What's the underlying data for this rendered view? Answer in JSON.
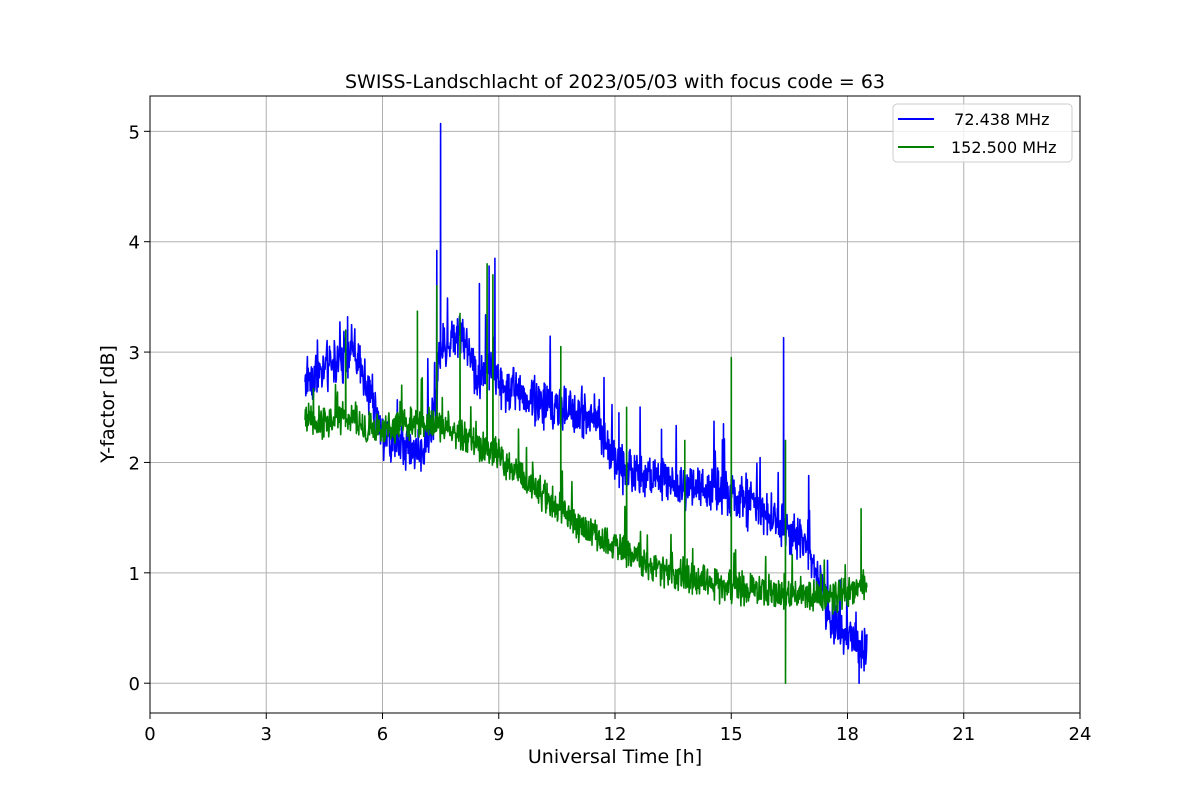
{
  "chart_data": {
    "type": "line",
    "title": "SWISS-Landschlacht of 2023/05/03 with focus code = 63",
    "xlabel": "Universal Time [h]",
    "ylabel": "Y-factor [dB]",
    "xlim": [
      0,
      24
    ],
    "ylim": [
      -0.27,
      5.32
    ],
    "xticks": [
      0,
      3,
      6,
      9,
      12,
      15,
      18,
      21,
      24
    ],
    "yticks": [
      0,
      1,
      2,
      3,
      4,
      5
    ],
    "grid": true,
    "legend_position": "top-right",
    "series": [
      {
        "name": "72.438 MHz",
        "legend_label": "  72.438 MHz",
        "color": "#0000ff",
        "x": [
          4.0,
          4.5,
          5.0,
          5.2,
          5.5,
          5.8,
          6.0,
          6.5,
          7.0,
          7.4,
          7.5,
          7.6,
          8.0,
          8.5,
          8.8,
          9.0,
          9.5,
          10.0,
          10.5,
          11.0,
          11.5,
          12.0,
          12.5,
          13.0,
          13.5,
          14.0,
          14.5,
          15.0,
          15.5,
          16.0,
          16.35,
          16.5,
          17.0,
          17.2,
          17.5,
          18.0,
          18.5
        ],
        "y": [
          2.75,
          2.85,
          2.95,
          3.05,
          2.8,
          2.45,
          2.25,
          2.15,
          2.1,
          2.55,
          3.1,
          3.05,
          3.2,
          2.75,
          2.9,
          2.7,
          2.65,
          2.55,
          2.5,
          2.45,
          2.4,
          2.0,
          1.9,
          1.85,
          1.8,
          1.8,
          1.75,
          1.7,
          1.6,
          1.5,
          1.45,
          1.35,
          1.25,
          1.0,
          0.6,
          0.45,
          0.3
        ],
        "noise": 0.16,
        "spikes": [
          [
            5.1,
            3.32
          ],
          [
            7.4,
            3.92
          ],
          [
            7.5,
            5.07
          ],
          [
            8.5,
            3.62
          ],
          [
            8.75,
            3.78
          ],
          [
            8.9,
            3.85
          ],
          [
            16.35,
            3.13
          ],
          [
            14.8,
            2.35
          ],
          [
            12.1,
            2.45
          ],
          [
            13.2,
            2.3
          ]
        ],
        "dips": [
          [
            18.3,
            0.0
          ]
        ]
      },
      {
        "name": "152.500 MHz",
        "legend_label": "152.500 MHz",
        "color": "#008000",
        "x": [
          4.0,
          4.5,
          5.0,
          5.5,
          6.0,
          6.5,
          7.0,
          7.5,
          8.0,
          8.5,
          9.0,
          9.5,
          10.0,
          10.5,
          11.0,
          11.5,
          12.0,
          12.5,
          13.0,
          13.5,
          14.0,
          14.5,
          15.0,
          15.5,
          16.0,
          16.5,
          17.0,
          17.5,
          18.0,
          18.5
        ],
        "y": [
          2.4,
          2.35,
          2.4,
          2.3,
          2.3,
          2.35,
          2.35,
          2.35,
          2.25,
          2.15,
          2.05,
          1.9,
          1.75,
          1.6,
          1.45,
          1.35,
          1.25,
          1.15,
          1.05,
          1.0,
          0.95,
          0.9,
          0.87,
          0.85,
          0.82,
          0.8,
          0.8,
          0.78,
          0.8,
          0.9
        ],
        "noise": 0.11,
        "spikes": [
          [
            5.05,
            3.2
          ],
          [
            6.9,
            3.37
          ],
          [
            7.4,
            3.6
          ],
          [
            8.0,
            3.35
          ],
          [
            8.7,
            3.8
          ],
          [
            8.85,
            3.7
          ],
          [
            10.6,
            3.05
          ],
          [
            15.0,
            2.95
          ],
          [
            16.4,
            2.2
          ],
          [
            18.35,
            1.58
          ],
          [
            12.3,
            2.5
          ],
          [
            13.8,
            2.2
          ]
        ],
        "dips": [
          [
            16.4,
            0.0
          ]
        ]
      }
    ]
  }
}
